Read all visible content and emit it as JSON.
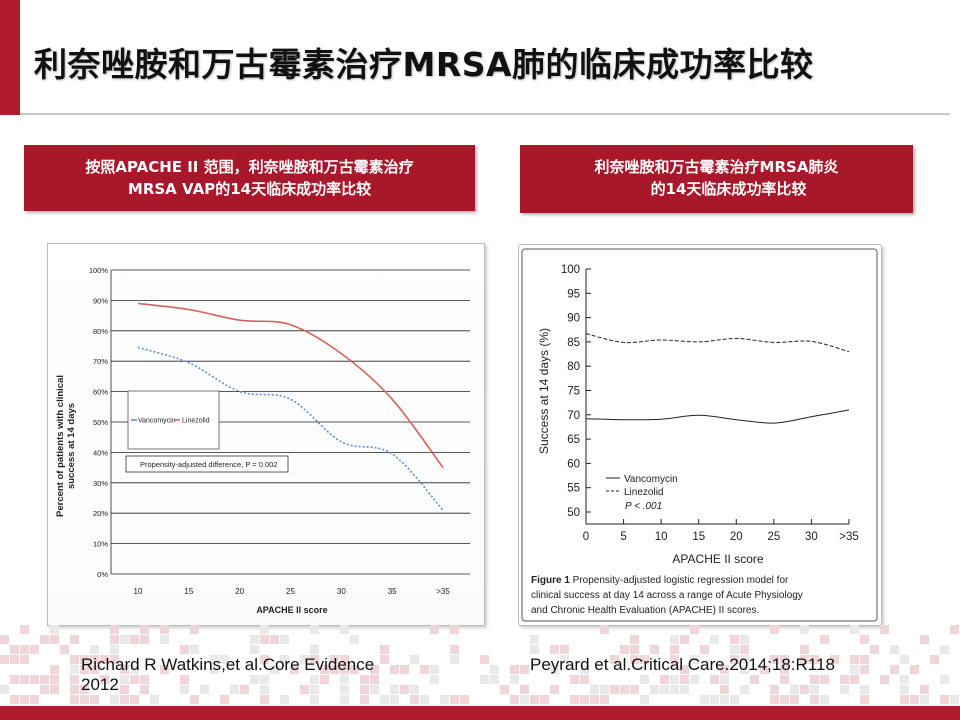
{
  "slide": {
    "title": "利奈唑胺和万古霉素治疗MRSA肺的临床成功率比较",
    "left_box": {
      "line1": "按照APACHE II 范围，利奈唑胺和万古霉素治疗",
      "line2": "MRSA VAP的14天临床成功率比较"
    },
    "right_box": {
      "line1": "利奈唑胺和万古霉素治疗MRSA肺炎",
      "line2": "的14天临床成功率比较"
    },
    "left_caption": {
      "line1": "Richard R Watkins,et al.Core Evidence",
      "line2": "2012"
    },
    "right_caption": "Peyrard et al.Critical Care.2014;18:R118",
    "colors": {
      "accent": "#b01c2e",
      "linezolid": "#d9605a",
      "vancomycin": "#5b8fd1"
    }
  },
  "chart_data": [
    {
      "type": "line",
      "categories": [
        "10",
        "15",
        "20",
        "25",
        "30",
        "35",
        ">35"
      ],
      "ylim": [
        0,
        100
      ],
      "yticks": [
        "0%",
        "10%",
        "20%",
        "30%",
        "40%",
        "50%",
        "60%",
        "70%",
        "80%",
        "90%",
        "100%"
      ],
      "ylabel_line1": "Percent of patients with clinical",
      "ylabel_line2": "success at 14 days",
      "xlabel": "APACHE II score",
      "annotation": "Propensity-adjusted difference, P = 0.002",
      "grid": true,
      "legend_position": "left-center",
      "series": [
        {
          "name": "Vancomycin",
          "style": "dotted",
          "color": "#5b8fd1",
          "values": [
            74.5,
            69.5,
            60,
            57.5,
            43.5,
            39.5,
            21
          ]
        },
        {
          "name": "Linezolid",
          "style": "solid",
          "color": "#d9605a",
          "values": [
            89,
            87,
            83.5,
            82,
            72.5,
            57.5,
            35
          ]
        }
      ]
    },
    {
      "type": "line",
      "x": [
        "0",
        "5",
        "10",
        "15",
        "20",
        "25",
        "30",
        ">35"
      ],
      "ylim": [
        50,
        100
      ],
      "yticks": [
        "50",
        "55",
        "60",
        "65",
        "70",
        "75",
        "80",
        "85",
        "90",
        "95",
        "100"
      ],
      "ylabel": "Success at 14 days (%)",
      "xlabel": "APACHE II score",
      "annotation": "P < .001",
      "legend_position": "bottom-left",
      "caption_bold": "Figure 1",
      "caption_lines": [
        " Propensity-adjusted logistic regression model for",
        "clinical success at day 14 across a range of Acute Physiology",
        "and Chronic Health Evaluation (APACHE) II scores."
      ],
      "series": [
        {
          "name": "Vancomycin",
          "style": "solid",
          "values": [
            69.2,
            69.0,
            69.1,
            69.9,
            69.0,
            68.3,
            69.6,
            71.0
          ]
        },
        {
          "name": "Linezolid",
          "style": "dashed",
          "values": [
            86.7,
            84.9,
            85.4,
            85.0,
            85.7,
            84.9,
            85.1,
            83.0
          ]
        }
      ]
    }
  ]
}
